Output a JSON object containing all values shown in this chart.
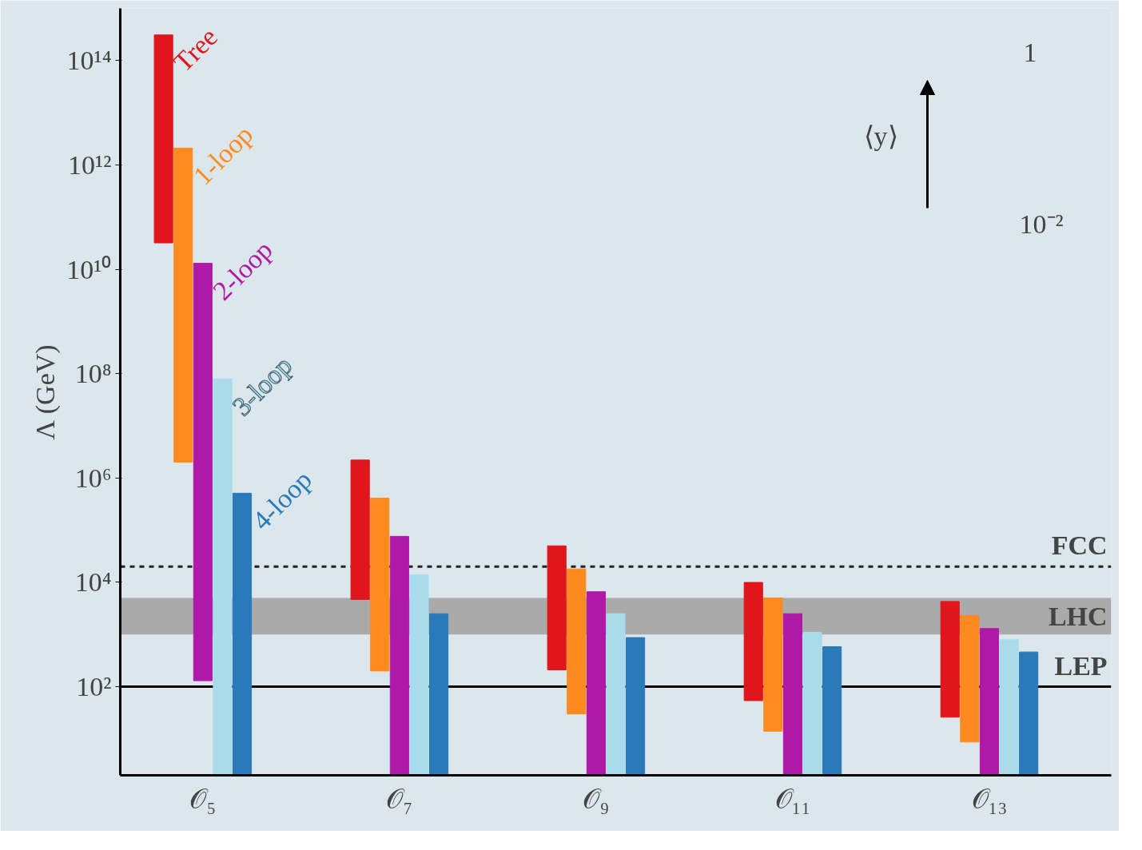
{
  "chart_data": {
    "type": "bar",
    "ylabel": "Λ (GeV)",
    "log": true,
    "categories": [
      "𝒪₅",
      "𝒪₇",
      "𝒪₉",
      "𝒪₁₁",
      "𝒪₁₃"
    ],
    "series": [
      {
        "name": "Tree",
        "color": "#e0161c",
        "base": [
          32000000000.0,
          4700,
          210,
          54,
          26
        ],
        "values": [
          310000000000000.0,
          2200000.0,
          49800.0,
          9900,
          4270
        ]
      },
      {
        "name": "1-loop",
        "color": "#ff8a1f",
        "base": [
          2000000.0,
          200,
          30,
          14,
          8.7
        ],
        "values": [
          2100000000000.0,
          410000.0,
          18000.0,
          4990,
          2290
        ]
      },
      {
        "name": "2-loop",
        "color": "#b019a8",
        "base": [
          130,
          2,
          2,
          2,
          2
        ],
        "values": [
          13000000000.0,
          76000.0,
          6600,
          2500,
          1300
        ]
      },
      {
        "name": "3-loop",
        "color": "#a9dbec",
        "base": [
          2,
          2,
          2,
          2,
          2
        ],
        "values": [
          79000000.0,
          14000.0,
          2500,
          1100,
          790
        ]
      },
      {
        "name": "4-loop",
        "color": "#2a79b8",
        "base": [
          2,
          2,
          2,
          2,
          2
        ],
        "values": [
          510000.0,
          2500,
          870,
          580,
          460
        ]
      }
    ],
    "ylim": [
      2,
      1000000000000000.0
    ],
    "yticks": [
      {
        "value": 100,
        "label": "10²"
      },
      {
        "value": 10000.0,
        "label": "10⁴"
      },
      {
        "value": 1000000.0,
        "label": "10⁶"
      },
      {
        "value": 100000000.0,
        "label": "10⁸"
      },
      {
        "value": 10000000000.0,
        "label": "10¹⁰"
      },
      {
        "value": 1000000000000.0,
        "label": "10¹²"
      },
      {
        "value": 100000000000000.0,
        "label": "10¹⁴"
      }
    ],
    "ref_lines": [
      {
        "axis": "y",
        "value": 20000.0,
        "label": "FCC",
        "color": "#222222",
        "line_style": "dashed"
      },
      {
        "axis": "y",
        "value": 100,
        "label": "LEP",
        "color": "#000000",
        "line_style": "solid"
      }
    ],
    "bands": [
      {
        "axis": "y",
        "from": 1000,
        "to": 5000,
        "label": "LHC",
        "color": "#aaaaaa"
      }
    ],
    "annotations": [
      "⟨y⟩",
      "1",
      "10⁻²"
    ]
  }
}
